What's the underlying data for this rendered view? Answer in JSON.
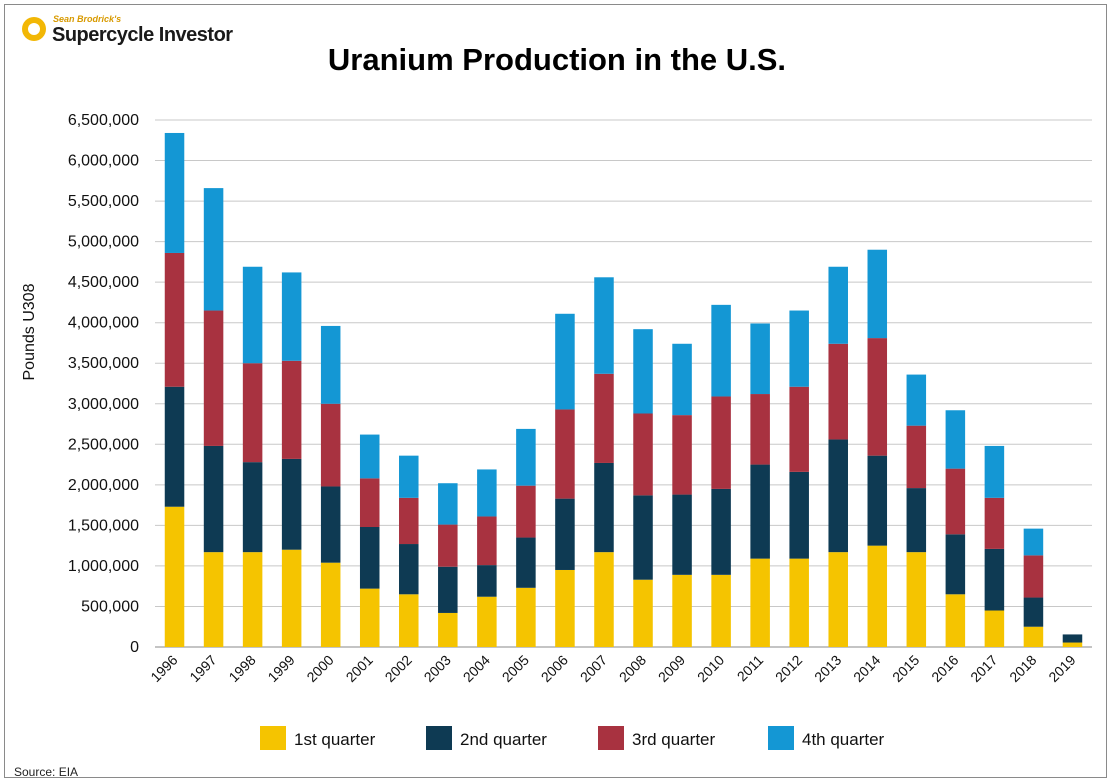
{
  "branding": {
    "byline": "Sean Brodrick's",
    "name": "Supercycle Investor"
  },
  "source": "Source: EIA",
  "colors": {
    "q1": "#f5c400",
    "q2": "#0e3a53",
    "q3": "#a83240",
    "q4": "#1497d4",
    "grid": "#c8c8c8"
  },
  "chart_data": {
    "type": "bar",
    "stacked": true,
    "title": "Uranium Production in the U.S.",
    "xlabel": "",
    "ylabel": "Pounds U308",
    "ylim": [
      0,
      6500000
    ],
    "yticks": [
      0,
      500000,
      1000000,
      1500000,
      2000000,
      2500000,
      3000000,
      3500000,
      4000000,
      4500000,
      5000000,
      5500000,
      6000000,
      6500000
    ],
    "ytick_labels": [
      "0",
      "500,000",
      "1,000,000",
      "1,500,000",
      "2,000,000",
      "2,500,000",
      "3,000,000",
      "3,500,000",
      "4,000,000",
      "4,500,000",
      "5,000,000",
      "5,500,000",
      "6,000,000",
      "6,500,000"
    ],
    "grid": true,
    "legend_position": "bottom",
    "categories": [
      "1996",
      "1997",
      "1998",
      "1999",
      "2000",
      "2001",
      "2002",
      "2003",
      "2004",
      "2005",
      "2006",
      "2007",
      "2008",
      "2009",
      "2010",
      "2011",
      "2012",
      "2013",
      "2014",
      "2015",
      "2016",
      "2017",
      "2018",
      "2019"
    ],
    "series": [
      {
        "name": "1st quarter",
        "color": "#f5c400",
        "values": [
          1730000,
          1170000,
          1170000,
          1200000,
          1040000,
          720000,
          650000,
          420000,
          620000,
          730000,
          950000,
          1170000,
          830000,
          890000,
          890000,
          1090000,
          1090000,
          1170000,
          1250000,
          1170000,
          650000,
          450000,
          250000,
          55000
        ]
      },
      {
        "name": "2nd quarter",
        "color": "#0e3a53",
        "values": [
          1480000,
          1310000,
          1110000,
          1120000,
          940000,
          760000,
          620000,
          570000,
          390000,
          620000,
          880000,
          1100000,
          1040000,
          990000,
          1060000,
          1160000,
          1070000,
          1390000,
          1110000,
          790000,
          740000,
          760000,
          360000,
          100000
        ]
      },
      {
        "name": "3rd quarter",
        "color": "#a83240",
        "values": [
          1650000,
          1670000,
          1220000,
          1210000,
          1020000,
          600000,
          570000,
          520000,
          600000,
          640000,
          1100000,
          1100000,
          1010000,
          980000,
          1140000,
          870000,
          1050000,
          1180000,
          1450000,
          770000,
          810000,
          630000,
          520000,
          0
        ]
      },
      {
        "name": "4th quarter",
        "color": "#1497d4",
        "values": [
          1480000,
          1510000,
          1190000,
          1090000,
          960000,
          540000,
          520000,
          510000,
          580000,
          700000,
          1180000,
          1190000,
          1040000,
          880000,
          1130000,
          870000,
          940000,
          950000,
          1090000,
          630000,
          720000,
          640000,
          330000,
          0
        ]
      }
    ]
  }
}
